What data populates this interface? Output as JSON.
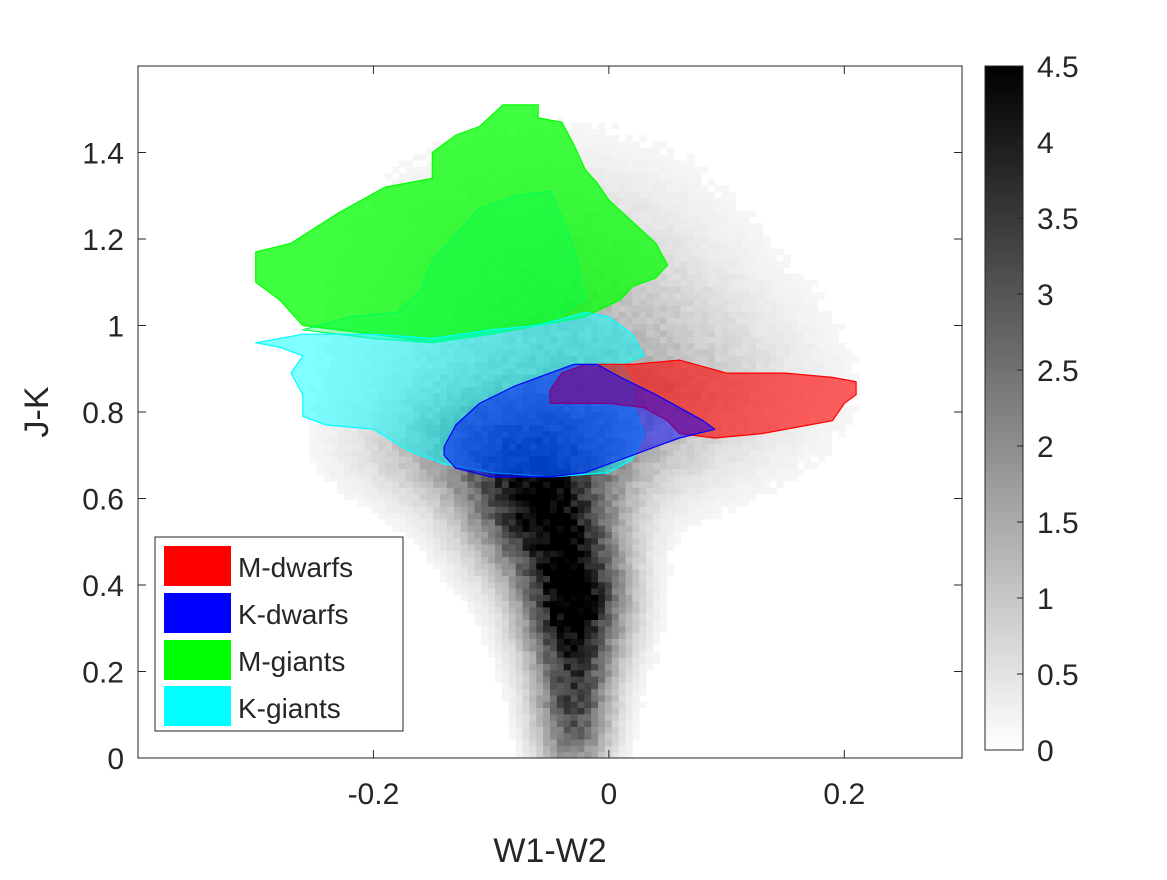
{
  "chart_data": {
    "type": "heatmap",
    "xlabel": "W1-W2",
    "ylabel": "J-K",
    "xlim": [
      -0.4,
      0.3
    ],
    "ylim": [
      0,
      1.6
    ],
    "xticks": [
      {
        "value": -0.2,
        "label": "-0.2"
      },
      {
        "value": 0,
        "label": "0"
      },
      {
        "value": 0.2,
        "label": "0.2"
      }
    ],
    "yticks": [
      {
        "value": 0,
        "label": "0"
      },
      {
        "value": 0.2,
        "label": "0.2"
      },
      {
        "value": 0.4,
        "label": "0.4"
      },
      {
        "value": 0.6,
        "label": "0.6"
      },
      {
        "value": 0.8,
        "label": "0.8"
      },
      {
        "value": 1.0,
        "label": "1"
      },
      {
        "value": 1.2,
        "label": "1.2"
      },
      {
        "value": 1.4,
        "label": "1.4"
      }
    ],
    "colorbar": {
      "range": [
        0,
        4.5
      ],
      "colormap": "gray-reversed",
      "ticks": [
        {
          "value": 0,
          "label": "0"
        },
        {
          "value": 0.5,
          "label": "0.5"
        },
        {
          "value": 1,
          "label": "1"
        },
        {
          "value": 1.5,
          "label": "1.5"
        },
        {
          "value": 2,
          "label": "2"
        },
        {
          "value": 2.5,
          "label": "2.5"
        },
        {
          "value": 3,
          "label": "3"
        },
        {
          "value": 3.5,
          "label": "3.5"
        },
        {
          "value": 4,
          "label": "4"
        },
        {
          "value": 4.5,
          "label": "4.5"
        }
      ]
    },
    "density_peaks": [
      {
        "x": -0.03,
        "y": 0.37,
        "sx": 0.03,
        "sy": 0.11,
        "amp": 4.4
      },
      {
        "x": -0.06,
        "y": 0.57,
        "sx": 0.04,
        "sy": 0.1,
        "amp": 3.6
      },
      {
        "x": -0.03,
        "y": 0.12,
        "sx": 0.022,
        "sy": 0.12,
        "amp": 3.0
      },
      {
        "x": -0.08,
        "y": 0.72,
        "sx": 0.07,
        "sy": 0.09,
        "amp": 2.2
      },
      {
        "x": -0.05,
        "y": 1.05,
        "sx": 0.1,
        "sy": 0.22,
        "amp": 0.9
      },
      {
        "x": 0.02,
        "y": 0.85,
        "sx": 0.1,
        "sy": 0.15,
        "amp": 0.8
      }
    ],
    "series": [
      {
        "name": "M-giants",
        "color": "#00ff00",
        "opacity": 0.75,
        "polygon": [
          [
            -0.3,
            1.17
          ],
          [
            -0.27,
            1.19
          ],
          [
            -0.23,
            1.26
          ],
          [
            -0.19,
            1.32
          ],
          [
            -0.15,
            1.34
          ],
          [
            -0.15,
            1.4
          ],
          [
            -0.13,
            1.44
          ],
          [
            -0.11,
            1.46
          ],
          [
            -0.09,
            1.51
          ],
          [
            -0.06,
            1.51
          ],
          [
            -0.06,
            1.48
          ],
          [
            -0.04,
            1.47
          ],
          [
            -0.03,
            1.42
          ],
          [
            -0.02,
            1.36
          ],
          [
            -0.01,
            1.33
          ],
          [
            0.0,
            1.29
          ],
          [
            0.02,
            1.24
          ],
          [
            0.04,
            1.19
          ],
          [
            0.05,
            1.14
          ],
          [
            0.04,
            1.11
          ],
          [
            0.02,
            1.09
          ],
          [
            0.01,
            1.06
          ],
          [
            -0.02,
            1.02
          ],
          [
            -0.06,
            1.0
          ],
          [
            -0.1,
            0.98
          ],
          [
            -0.15,
            0.96
          ],
          [
            -0.2,
            0.98
          ],
          [
            -0.26,
            1.0
          ],
          [
            -0.28,
            1.06
          ],
          [
            -0.3,
            1.1
          ]
        ]
      },
      {
        "name": "M-giants-inner",
        "color": "#00ff55",
        "opacity": 0.35,
        "polygon": [
          [
            -0.26,
            0.99
          ],
          [
            -0.22,
            1.02
          ],
          [
            -0.18,
            1.03
          ],
          [
            -0.16,
            1.08
          ],
          [
            -0.15,
            1.15
          ],
          [
            -0.13,
            1.21
          ],
          [
            -0.11,
            1.27
          ],
          [
            -0.08,
            1.3
          ],
          [
            -0.05,
            1.31
          ],
          [
            -0.04,
            1.25
          ],
          [
            -0.03,
            1.18
          ],
          [
            -0.02,
            1.06
          ],
          [
            -0.05,
            1.01
          ],
          [
            -0.1,
            0.98
          ],
          [
            -0.15,
            0.96
          ],
          [
            -0.2,
            0.97
          ]
        ]
      },
      {
        "name": "K-giants",
        "color": "#00ffff",
        "opacity": 0.5,
        "polygon": [
          [
            -0.3,
            0.96
          ],
          [
            -0.28,
            0.95
          ],
          [
            -0.26,
            0.93
          ],
          [
            -0.27,
            0.89
          ],
          [
            -0.26,
            0.84
          ],
          [
            -0.26,
            0.79
          ],
          [
            -0.24,
            0.77
          ],
          [
            -0.2,
            0.76
          ],
          [
            -0.17,
            0.71
          ],
          [
            -0.14,
            0.68
          ],
          [
            -0.1,
            0.66
          ],
          [
            -0.05,
            0.65
          ],
          [
            0.0,
            0.66
          ],
          [
            0.02,
            0.69
          ],
          [
            0.03,
            0.75
          ],
          [
            0.02,
            0.82
          ],
          [
            0.02,
            0.87
          ],
          [
            0.01,
            0.91
          ],
          [
            0.03,
            0.93
          ],
          [
            0.02,
            0.98
          ],
          [
            0.0,
            1.02
          ],
          [
            -0.02,
            1.03
          ],
          [
            -0.06,
            1.0
          ],
          [
            -0.1,
            0.99
          ],
          [
            -0.15,
            0.97
          ],
          [
            -0.2,
            0.98
          ],
          [
            -0.26,
            0.98
          ]
        ]
      },
      {
        "name": "M-dwarfs",
        "color": "#ff0000",
        "opacity": 0.62,
        "polygon": [
          [
            -0.05,
            0.85
          ],
          [
            -0.04,
            0.89
          ],
          [
            -0.02,
            0.91
          ],
          [
            0.02,
            0.91
          ],
          [
            0.06,
            0.92
          ],
          [
            0.1,
            0.89
          ],
          [
            0.15,
            0.89
          ],
          [
            0.19,
            0.88
          ],
          [
            0.21,
            0.87
          ],
          [
            0.21,
            0.84
          ],
          [
            0.2,
            0.82
          ],
          [
            0.19,
            0.78
          ],
          [
            0.17,
            0.77
          ],
          [
            0.13,
            0.75
          ],
          [
            0.09,
            0.74
          ],
          [
            0.06,
            0.75
          ],
          [
            0.05,
            0.78
          ],
          [
            0.03,
            0.81
          ],
          [
            0.0,
            0.82
          ],
          [
            -0.02,
            0.82
          ],
          [
            -0.05,
            0.82
          ]
        ]
      },
      {
        "name": "K-dwarfs",
        "color": "#0000ff",
        "opacity": 0.5,
        "polygon": [
          [
            -0.14,
            0.72
          ],
          [
            -0.13,
            0.77
          ],
          [
            -0.11,
            0.82
          ],
          [
            -0.08,
            0.86
          ],
          [
            -0.05,
            0.89
          ],
          [
            -0.03,
            0.91
          ],
          [
            -0.01,
            0.91
          ],
          [
            0.01,
            0.88
          ],
          [
            0.04,
            0.84
          ],
          [
            0.06,
            0.81
          ],
          [
            0.08,
            0.78
          ],
          [
            0.09,
            0.76
          ],
          [
            0.06,
            0.74
          ],
          [
            0.04,
            0.72
          ],
          [
            0.02,
            0.7
          ],
          [
            0.0,
            0.68
          ],
          [
            -0.02,
            0.66
          ],
          [
            -0.05,
            0.65
          ],
          [
            -0.1,
            0.65
          ],
          [
            -0.13,
            0.67
          ],
          [
            -0.14,
            0.7
          ]
        ]
      }
    ],
    "legend": {
      "location": "bottom-left",
      "entries": [
        {
          "label": "M-dwarfs",
          "color": "#ff0000"
        },
        {
          "label": "K-dwarfs",
          "color": "#0000ff"
        },
        {
          "label": "M-giants",
          "color": "#00ff00"
        },
        {
          "label": "K-giants",
          "color": "#00ffff"
        }
      ]
    }
  }
}
